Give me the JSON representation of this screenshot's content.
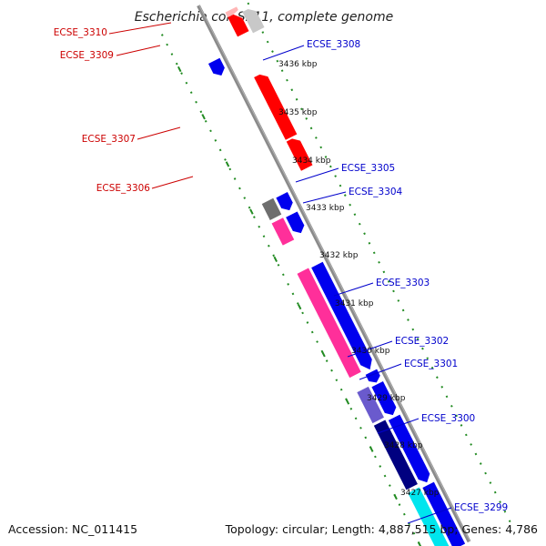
{
  "title": "Escherichia coli SE11, complete genome",
  "footer": {
    "accession": "Accession: NC_011415",
    "summary": "Topology: circular; Length: 4,887,515 bp; Genes: 4,786"
  },
  "colors": {
    "backbone": "#888888",
    "ticks": "#228B22",
    "reverse_label": "#cc0000",
    "forward_label": "#0000cc"
  },
  "kbp_ticks": [
    {
      "label": "3436 kbp"
    },
    {
      "label": "3435 kbp"
    },
    {
      "label": "3434 kbp"
    },
    {
      "label": "3433 kbp"
    },
    {
      "label": "3432 kbp"
    },
    {
      "label": "3431 kbp"
    },
    {
      "label": "3430 kbp"
    },
    {
      "label": "3429 kbp"
    },
    {
      "label": "3428 kbp"
    },
    {
      "label": "3427 kbp"
    }
  ],
  "gene_labels": [
    {
      "name": "ECSE_3310",
      "strand": "reverse"
    },
    {
      "name": "ECSE_3309",
      "strand": "reverse"
    },
    {
      "name": "ECSE_3308",
      "strand": "forward"
    },
    {
      "name": "ECSE_3307",
      "strand": "reverse"
    },
    {
      "name": "ECSE_3306",
      "strand": "reverse"
    },
    {
      "name": "ECSE_3305",
      "strand": "forward"
    },
    {
      "name": "ECSE_3304",
      "strand": "forward"
    },
    {
      "name": "ECSE_3303",
      "strand": "forward"
    },
    {
      "name": "ECSE_3302",
      "strand": "forward"
    },
    {
      "name": "ECSE_3301",
      "strand": "forward"
    },
    {
      "name": "ECSE_3300",
      "strand": "forward"
    },
    {
      "name": "ECSE_3299",
      "strand": "forward"
    }
  ]
}
